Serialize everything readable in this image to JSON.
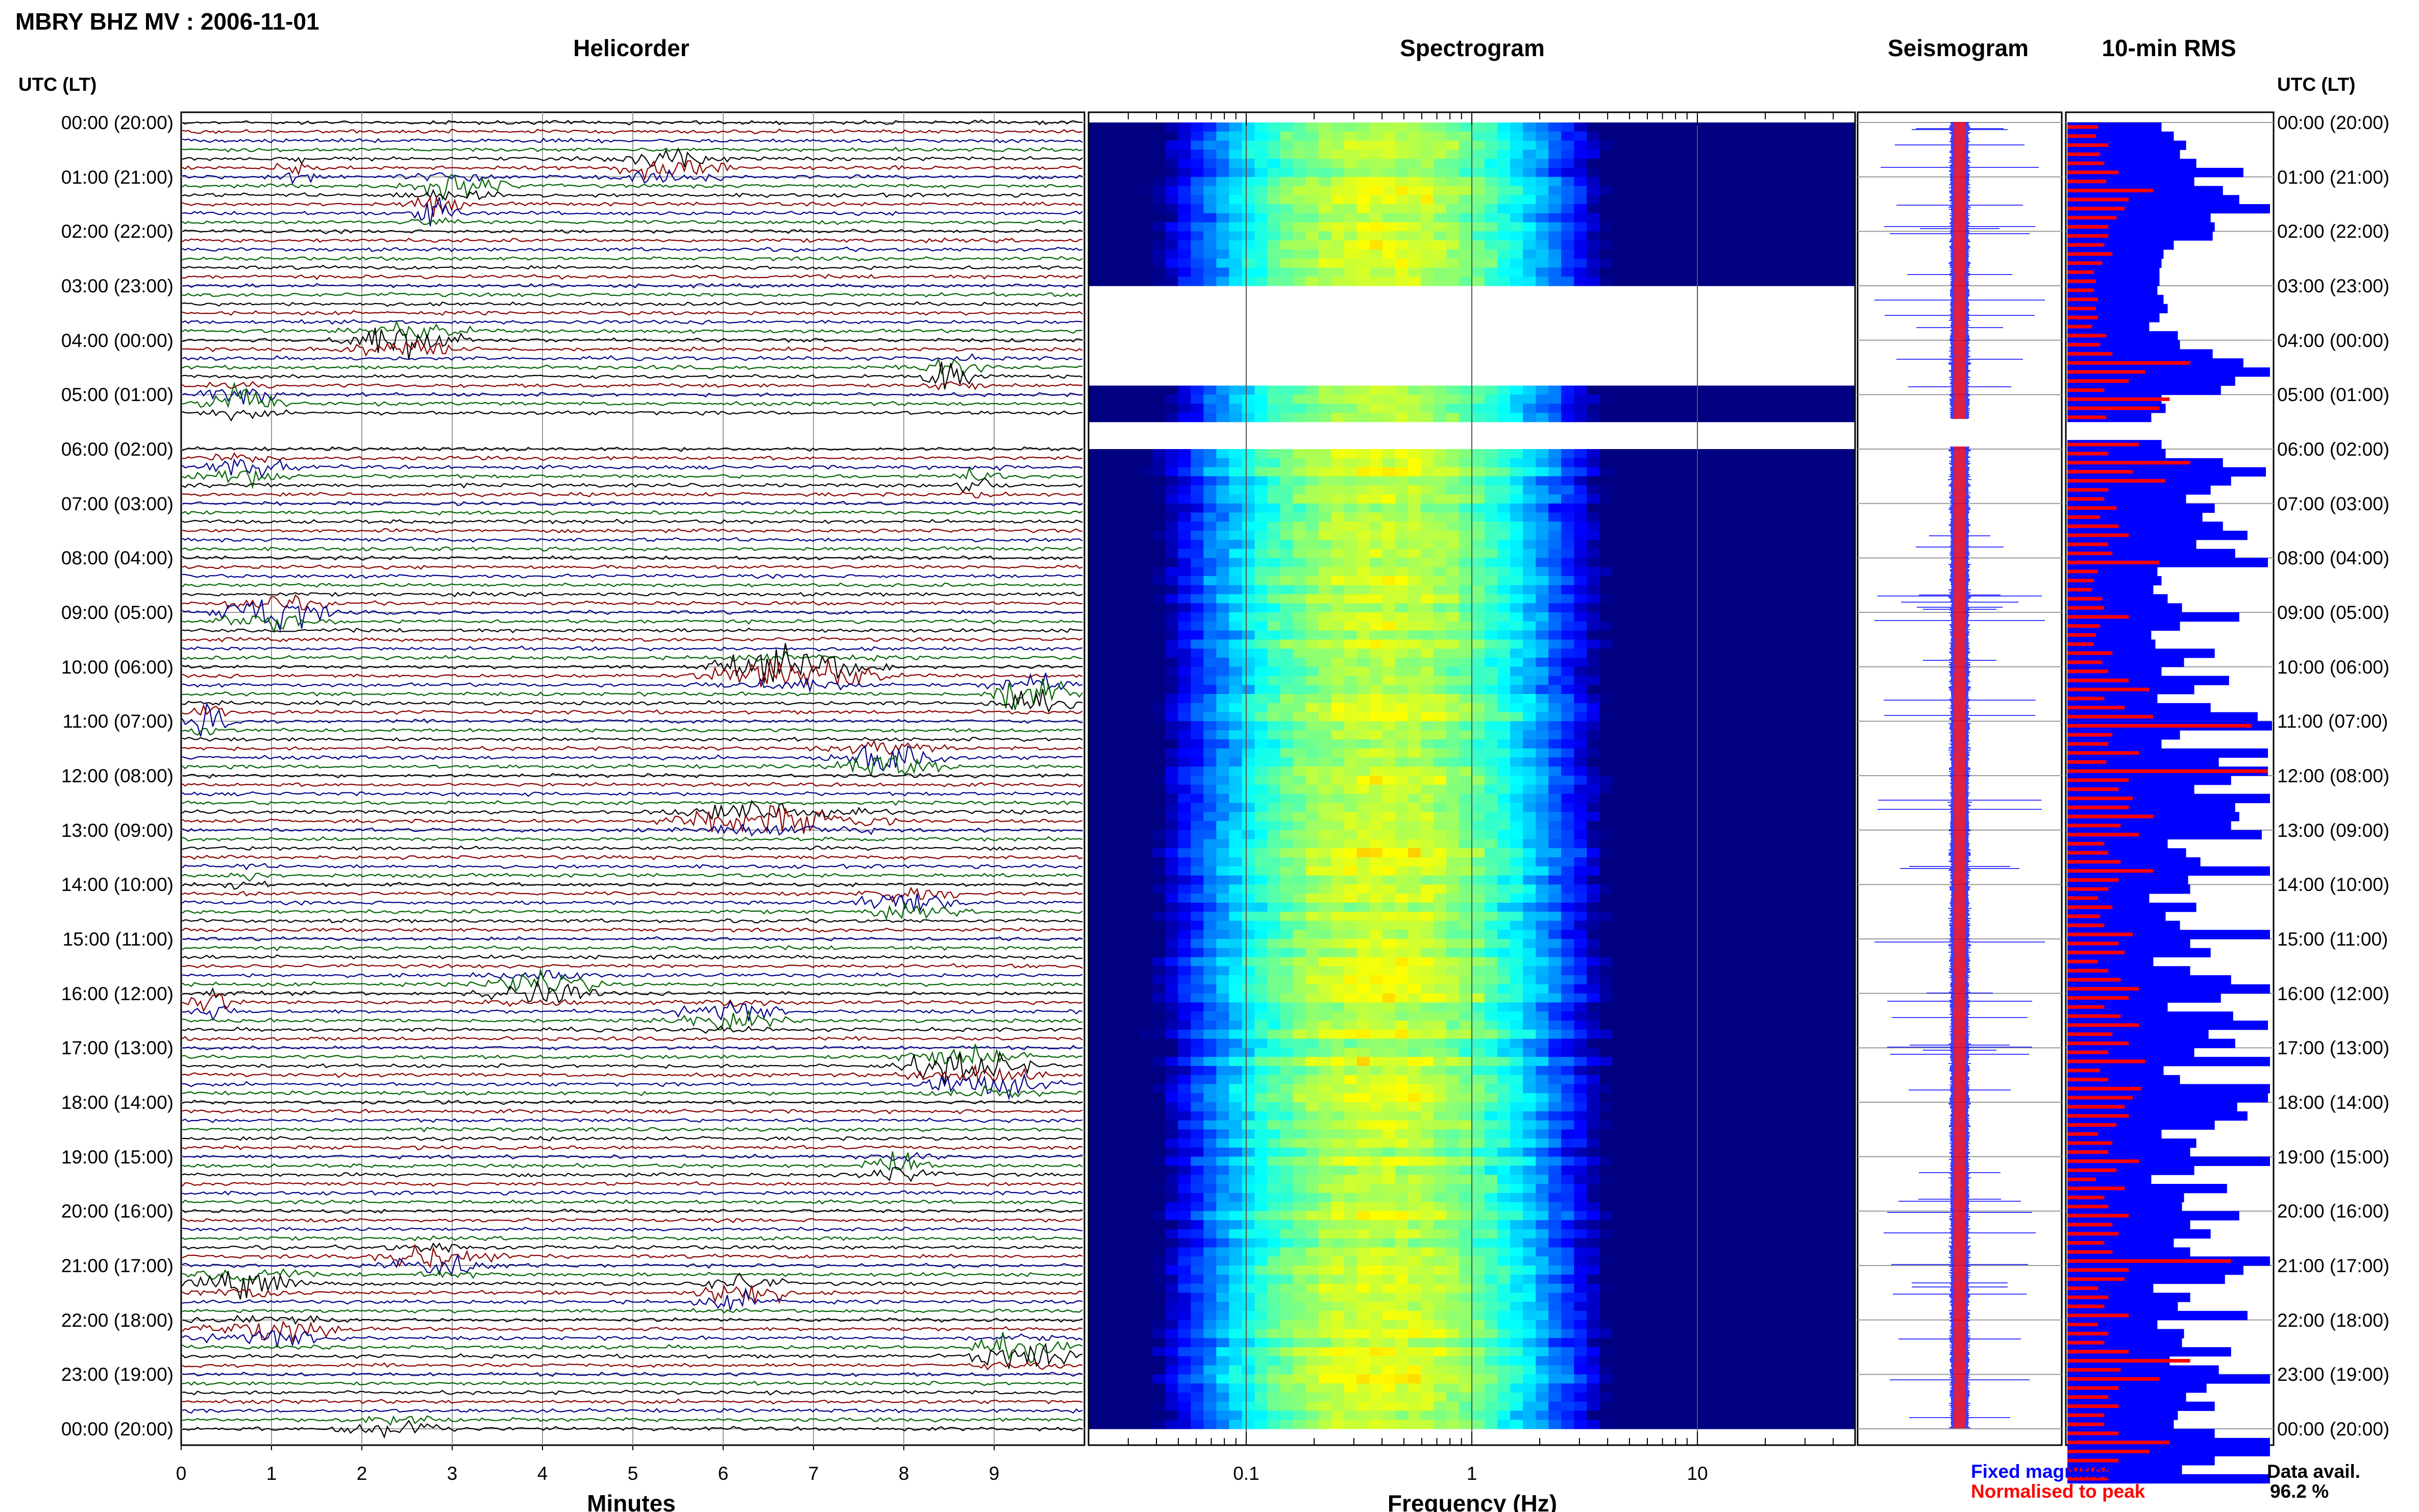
{
  "title": "MBRY BHZ MV : 2006-11-01",
  "utc_label": "UTC (LT)",
  "colors": {
    "trace": [
      "#000000",
      "#8b0000",
      "#00008b",
      "#006400"
    ],
    "fixed": "#0000ff",
    "normalised": "#ff0000",
    "grid": "#999999"
  },
  "chart_data": [
    {
      "type": "line",
      "name": "helicorder",
      "title": "Helicorder",
      "xlabel": "Minutes",
      "ylabel": "",
      "x_ticks": [
        "0",
        "1",
        "2",
        "3",
        "4",
        "5",
        "6",
        "7",
        "8",
        "9"
      ],
      "xlim": [
        0,
        10
      ],
      "rows_per_hour": 6,
      "trace_color_cycle": [
        "black",
        "dark red",
        "dark blue",
        "dark green"
      ],
      "gaps_hours": [
        [
          5.45,
          5.95
        ]
      ]
    },
    {
      "type": "heatmap",
      "name": "spectrogram",
      "title": "Spectrogram",
      "xlabel": "Frequency (Hz)",
      "x_scale": "log",
      "xlim": [
        0.02,
        50
      ],
      "x_ticks": [
        "0.1",
        "1",
        "10"
      ],
      "colormap": "jet",
      "peak_frequency_hz": 0.4,
      "gaps_hours": [
        [
          3.0,
          4.8
        ],
        [
          5.45,
          5.95
        ]
      ]
    },
    {
      "type": "line",
      "name": "seismogram",
      "title": "Seismogram",
      "series": [
        {
          "name": "Fixed magnification",
          "color": "blue"
        },
        {
          "name": "Normalised to peak",
          "color": "red"
        }
      ]
    },
    {
      "type": "bar",
      "name": "rms",
      "title": "10-min RMS",
      "bar_interval_minutes": 10,
      "values_fixed": [
        0.46,
        0.52,
        0.58,
        0.55,
        0.63,
        0.86,
        0.62,
        0.76,
        0.84,
        0.99,
        0.7,
        0.72,
        0.71,
        0.52,
        0.47,
        0.46,
        0.45,
        0.45,
        0.44,
        0.47,
        0.49,
        0.45,
        0.4,
        0.54,
        0.55,
        0.71,
        0.86,
        0.99,
        0.82,
        0.75,
        0.46,
        0.48,
        0.41,
        0.0,
        0.0,
        0.46,
        0.48,
        0.76,
        0.97,
        0.8,
        0.7,
        0.58,
        0.72,
        0.66,
        0.76,
        0.88,
        0.63,
        0.82,
        0.98,
        0.44,
        0.46,
        0.42,
        0.49,
        0.56,
        0.84,
        0.55,
        0.41,
        0.43,
        0.72,
        0.57,
        0.46,
        0.79,
        0.62,
        0.44,
        0.7,
        0.93,
        1.0,
        0.55,
        0.46,
        0.98,
        0.74,
        0.98,
        0.8,
        0.62,
        0.99,
        0.82,
        0.84,
        0.8,
        0.95,
        0.49,
        0.58,
        0.65,
        0.99,
        0.59,
        0.6,
        0.4,
        0.63,
        0.48,
        0.55,
        0.99,
        0.6,
        0.7,
        0.42,
        0.6,
        0.8,
        0.99,
        0.75,
        0.49,
        0.81,
        0.98,
        0.69,
        0.82,
        0.62,
        0.99,
        0.47,
        0.55,
        0.99,
        0.98,
        0.83,
        0.88,
        0.72,
        0.46,
        0.63,
        0.6,
        0.99,
        0.62,
        0.41,
        0.78,
        0.57,
        0.56,
        0.84,
        0.6,
        0.7,
        0.52,
        0.6,
        0.99,
        0.86,
        0.77,
        0.42,
        0.6,
        0.54,
        0.88,
        0.44,
        0.57,
        0.56,
        0.8,
        0.5,
        0.74,
        0.99,
        0.68,
        0.58,
        0.72,
        0.54,
        0.52,
        0.72,
        0.99,
        0.99,
        0.72,
        0.56,
        0.99
      ],
      "values_normalised": [
        0.15,
        0.14,
        0.2,
        0.16,
        0.18,
        0.25,
        0.19,
        0.42,
        0.3,
        0.28,
        0.24,
        0.2,
        0.2,
        0.18,
        0.22,
        0.17,
        0.13,
        0.14,
        0.13,
        0.15,
        0.14,
        0.15,
        0.12,
        0.19,
        0.16,
        0.22,
        0.6,
        0.38,
        0.3,
        0.18,
        0.5,
        0.45,
        0.19,
        0.0,
        0.0,
        0.35,
        0.2,
        0.6,
        0.32,
        0.48,
        0.2,
        0.18,
        0.24,
        0.16,
        0.25,
        0.3,
        0.2,
        0.22,
        0.45,
        0.15,
        0.13,
        0.12,
        0.17,
        0.18,
        0.3,
        0.16,
        0.14,
        0.13,
        0.22,
        0.17,
        0.2,
        0.3,
        0.4,
        0.18,
        0.28,
        0.42,
        0.9,
        0.22,
        0.2,
        0.35,
        0.19,
        0.98,
        0.3,
        0.25,
        0.32,
        0.3,
        0.42,
        0.26,
        0.35,
        0.18,
        0.2,
        0.26,
        0.42,
        0.25,
        0.2,
        0.15,
        0.22,
        0.16,
        0.18,
        0.32,
        0.25,
        0.28,
        0.15,
        0.2,
        0.26,
        0.35,
        0.3,
        0.18,
        0.26,
        0.35,
        0.22,
        0.3,
        0.2,
        0.38,
        0.16,
        0.2,
        0.36,
        0.32,
        0.28,
        0.3,
        0.24,
        0.15,
        0.22,
        0.2,
        0.35,
        0.24,
        0.14,
        0.28,
        0.18,
        0.2,
        0.3,
        0.22,
        0.25,
        0.18,
        0.22,
        0.8,
        0.3,
        0.28,
        0.15,
        0.2,
        0.18,
        0.3,
        0.15,
        0.2,
        0.18,
        0.3,
        0.6,
        0.26,
        0.45,
        0.25,
        0.2,
        0.25,
        0.18,
        0.18,
        0.25,
        0.5,
        0.4,
        0.25,
        0.2,
        0.2
      ]
    }
  ],
  "panels": {
    "helicorder": "Helicorder",
    "spectrogram": "Spectrogram",
    "seismogram": "Seismogram",
    "rms": "10-min RMS"
  },
  "axes": {
    "helicorder_xlabel": "Minutes",
    "spectrogram_xlabel": "Frequency (Hz)"
  },
  "time_labels": [
    "00:00 (20:00)",
    "01:00 (21:00)",
    "02:00 (22:00)",
    "03:00 (23:00)",
    "04:00 (00:00)",
    "05:00 (01:00)",
    "06:00 (02:00)",
    "07:00 (03:00)",
    "08:00 (04:00)",
    "09:00 (05:00)",
    "10:00 (06:00)",
    "11:00 (07:00)",
    "12:00 (08:00)",
    "13:00 (09:00)",
    "14:00 (10:00)",
    "15:00 (11:00)",
    "16:00 (12:00)",
    "17:00 (13:00)",
    "18:00 (14:00)",
    "19:00 (15:00)",
    "20:00 (16:00)",
    "21:00 (17:00)",
    "22:00 (18:00)",
    "23:00 (19:00)",
    "00:00 (20:00)"
  ],
  "legend": {
    "fixed": "Fixed magnification",
    "normalised": "Normalised to peak"
  },
  "data_avail": {
    "label": "Data avail.",
    "value": "96.2 %"
  }
}
